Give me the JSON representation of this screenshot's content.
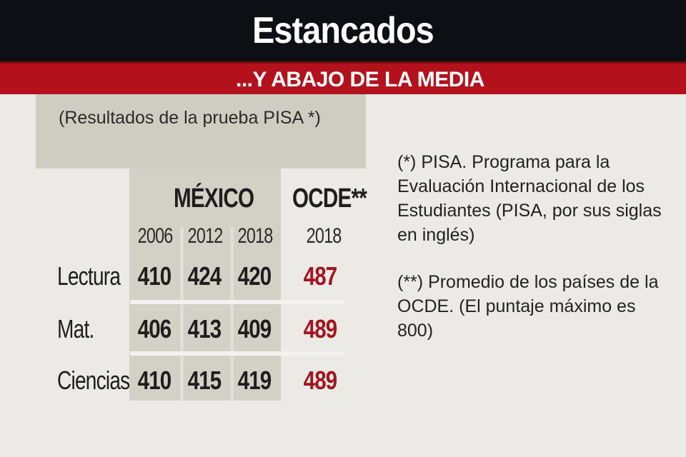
{
  "header": {
    "title": "Estancados",
    "subtitle": "...Y ABAJO DE LA MEDIA"
  },
  "note": "(Resultados de la prueba PISA *)",
  "footnotes": {
    "pisa": "(*) PISA. Programa para la Evaluación Internacional de los Estudiantes (PISA, por sus siglas en inglés)",
    "ocde": "(**) Promedio de los países de la OCDE. (El puntaje máximo es 800)"
  },
  "colors": {
    "title_bar": "#0d0f14",
    "subtitle_bar": "#b3121d",
    "oecd_values": "#a3151f",
    "mexico_band": "#d3d1c6"
  },
  "chart_data": {
    "type": "table",
    "groups": [
      {
        "label": "MÉXICO",
        "years": [
          "2006",
          "2012",
          "2018"
        ]
      },
      {
        "label": "OCDE**",
        "years": [
          "2018"
        ]
      }
    ],
    "rows": [
      {
        "label": "Lectura",
        "mexico": [
          "410",
          "424",
          "420"
        ],
        "ocde": "487"
      },
      {
        "label": "Mat.",
        "mexico": [
          "406",
          "413",
          "409"
        ],
        "ocde": "489"
      },
      {
        "label": "Ciencias",
        "mexico": [
          "410",
          "415",
          "419"
        ],
        "ocde": "489"
      }
    ]
  }
}
